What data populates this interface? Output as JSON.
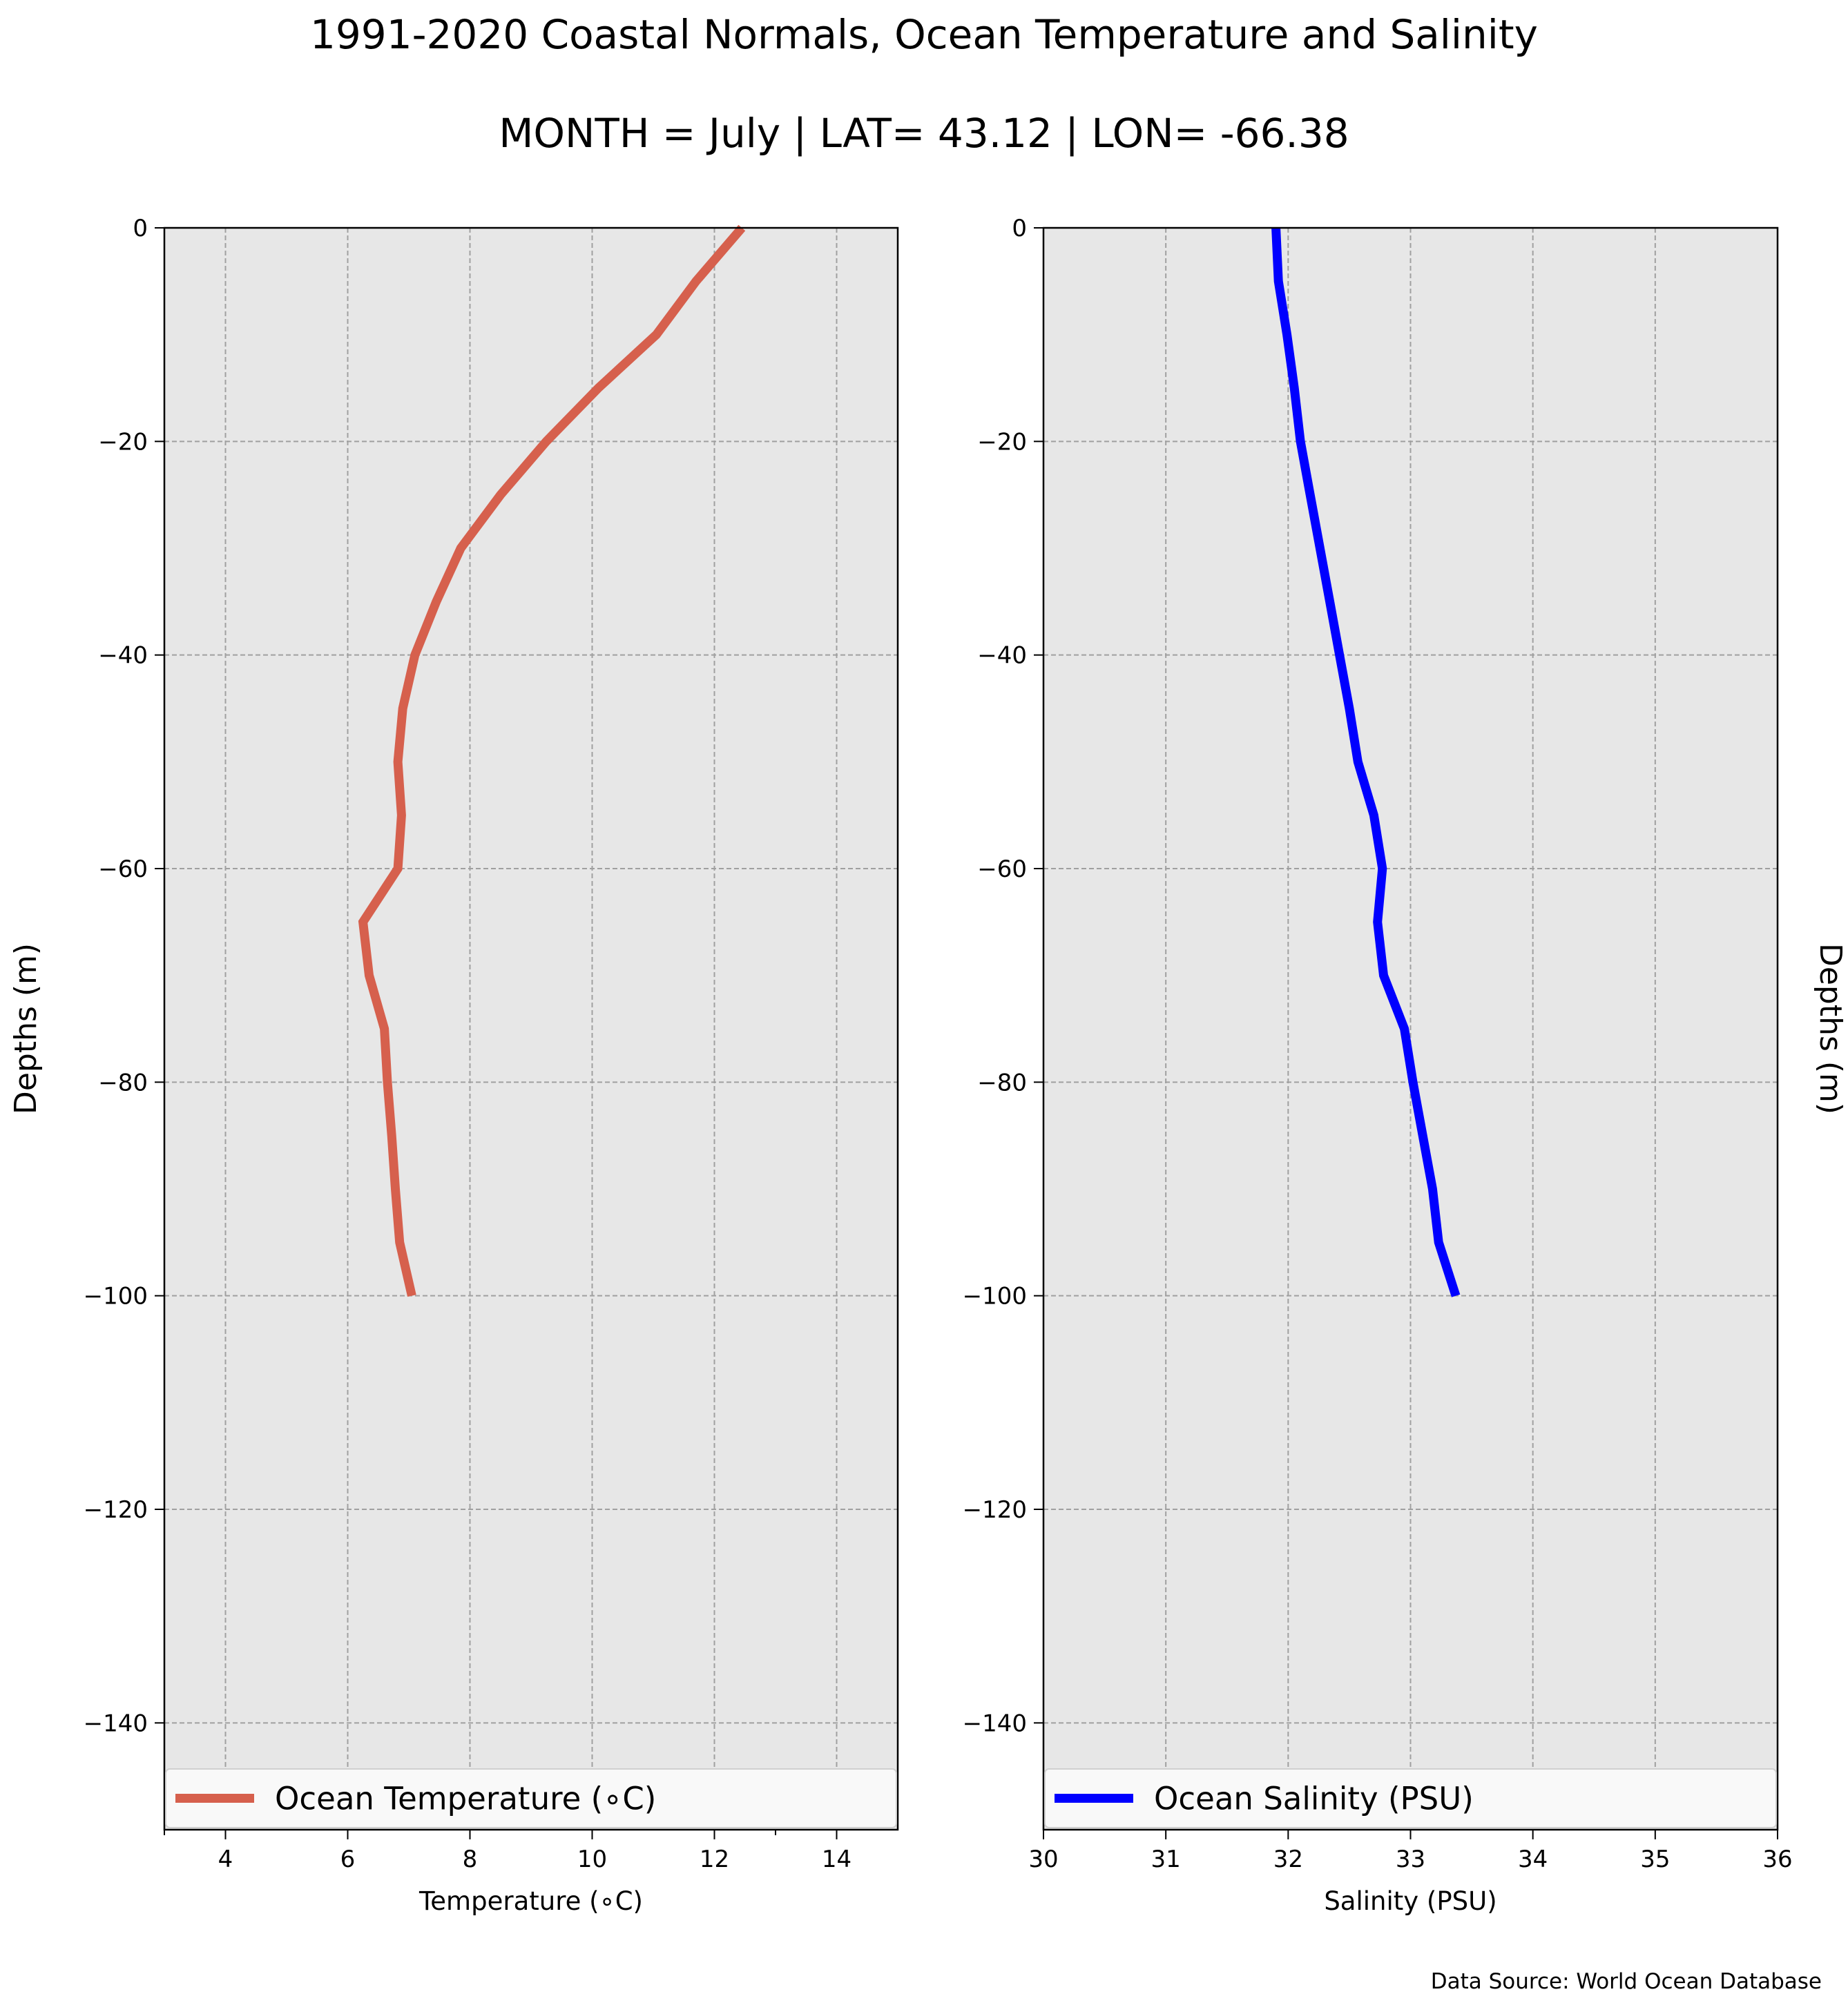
{
  "title_line1": "1991-2020 Coastal Normals, Ocean Temperature and Salinity",
  "title_line2": "MONTH = July | LAT= 43.12 | LON= -66.38",
  "source": "Data Source: World Ocean Database",
  "colors": {
    "panel_bg": "#e7e7e7",
    "grid": "#a0a0a0",
    "temperature": "#d6604d",
    "salinity": "#0000ff"
  },
  "chart_data": [
    {
      "type": "line",
      "xlabel": "Temperature (∘C)",
      "ylabel": "Depths (m)",
      "xlim": [
        3,
        15
      ],
      "ylim": [
        -150,
        0
      ],
      "xticks": [
        4,
        6,
        8,
        10,
        12,
        14
      ],
      "xtick_labels": [
        "4",
        "6",
        "8",
        "10",
        "12",
        "14"
      ],
      "yticks": [
        0,
        -20,
        -40,
        -60,
        -80,
        -100,
        -120,
        -140
      ],
      "ytick_labels": [
        "0",
        "−20",
        "−40",
        "−60",
        "−80",
        "−100",
        "−120",
        "−140"
      ],
      "grid": true,
      "legend_position": "bottom",
      "series": [
        {
          "name": "Ocean Temperature (∘C)",
          "color": "#d6604d",
          "x": [
            12.45,
            11.7,
            11.05,
            10.1,
            9.25,
            8.5,
            7.85,
            7.45,
            7.1,
            6.9,
            6.82,
            6.88,
            6.82,
            6.25,
            6.35,
            6.6,
            6.65,
            6.72,
            6.78,
            6.85,
            7.05
          ],
          "y": [
            0,
            -5,
            -10,
            -15,
            -20,
            -25,
            -30,
            -35,
            -40,
            -45,
            -50,
            -55,
            -60,
            -65,
            -70,
            -75,
            -80,
            -85,
            -90,
            -95,
            -100
          ]
        }
      ]
    },
    {
      "type": "line",
      "xlabel": "Salinity (PSU)",
      "ylabel": "Depths (m)",
      "xlim": [
        30,
        36
      ],
      "ylim": [
        -150,
        0
      ],
      "xticks": [
        30,
        31,
        32,
        33,
        34,
        35,
        36
      ],
      "xtick_labels": [
        "30",
        "31",
        "32",
        "33",
        "34",
        "35",
        "36"
      ],
      "yticks": [
        0,
        -20,
        -40,
        -60,
        -80,
        -100,
        -120,
        -140
      ],
      "ytick_labels": [
        "0",
        "−20",
        "−40",
        "−60",
        "−80",
        "−100",
        "−120",
        "−140"
      ],
      "grid": true,
      "legend_position": "bottom",
      "series": [
        {
          "name": "Ocean Salinity (PSU)",
          "color": "#0000ff",
          "x": [
            31.9,
            31.92,
            31.99,
            32.05,
            32.1,
            32.18,
            32.26,
            32.34,
            32.42,
            32.5,
            32.57,
            32.7,
            32.77,
            32.73,
            32.78,
            32.95,
            33.02,
            33.1,
            33.18,
            33.23,
            33.37
          ],
          "y": [
            0,
            -5,
            -10,
            -15,
            -20,
            -25,
            -30,
            -35,
            -40,
            -45,
            -50,
            -55,
            -60,
            -65,
            -70,
            -75,
            -80,
            -85,
            -90,
            -95,
            -100
          ]
        }
      ]
    }
  ]
}
